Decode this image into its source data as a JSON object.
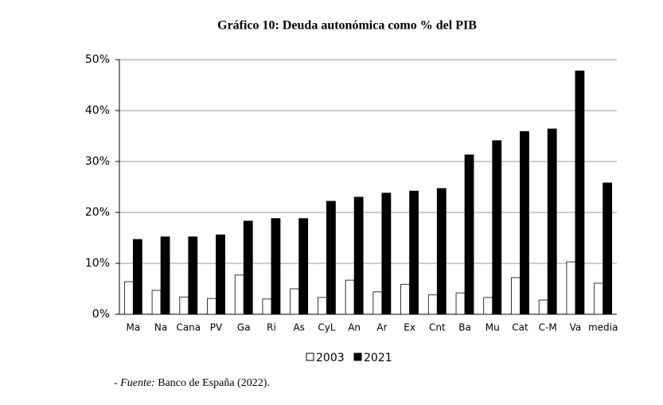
{
  "chart_data": {
    "type": "bar",
    "title": "Gráfico 10: Deuda autonómica como % del PIB",
    "categories": [
      "Ma",
      "Na",
      "Cana",
      "PV",
      "Ga",
      "Ri",
      "As",
      "CyL",
      "An",
      "Ar",
      "Ex",
      "Cnt",
      "Ba",
      "Mu",
      "Cat",
      "C-M",
      "Va",
      "media"
    ],
    "series": [
      {
        "name": "2003",
        "color": "#ffffff",
        "values": [
          6.4,
          4.7,
          3.4,
          3.1,
          7.7,
          3.0,
          5.0,
          3.3,
          6.7,
          4.4,
          5.9,
          3.8,
          4.2,
          3.3,
          7.2,
          2.8,
          10.3,
          6.1
        ]
      },
      {
        "name": "2021",
        "color": "#000000",
        "values": [
          14.7,
          15.2,
          15.2,
          15.6,
          18.3,
          18.8,
          18.8,
          22.2,
          23.0,
          23.8,
          24.2,
          24.7,
          31.3,
          34.1,
          35.9,
          36.4,
          47.8,
          25.8
        ]
      }
    ],
    "ylim": [
      0,
      50
    ],
    "yticks": [
      {
        "value": 0,
        "label": "0%"
      },
      {
        "value": 10,
        "label": "10%"
      },
      {
        "value": 20,
        "label": "20%"
      },
      {
        "value": 30,
        "label": "30%"
      },
      {
        "value": 40,
        "label": "40%"
      },
      {
        "value": 50,
        "label": "50%"
      }
    ],
    "grid": true,
    "legend": "bottom",
    "source_prefix": "-",
    "source_label": "Fuente:",
    "source_text": "Banco de España (2022)."
  }
}
